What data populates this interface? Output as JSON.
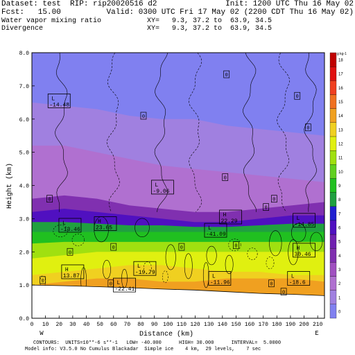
{
  "header": {
    "line1_left": "Dataset: test  RIP: rip20020516 d2",
    "line1_right": "Init: 1200 UTC Thu 16 May 02",
    "line2_left": "Fcst:   15.00",
    "line2_right": "Valid: 0300 UTC Fri 17 May 02 (2200 CDT Thu 16 May 02)",
    "line3_left": "Water vapor mixing ratio",
    "line3_right": "XY=   9.3, 37.2 to  63.9, 34.5",
    "line4_left": "Divergence",
    "line4_right": "XY=   9.3, 37.2 to  63.9, 34.5"
  },
  "footer": {
    "line1": "CONTOURS:  UNITS=10**-6 s**-1   LOW= -40.000      HIGH= 30.000      INTERVAL=  5.0000",
    "line2": "Model info: V3.5.0 No Cumulus Blackadar  Simple ice    4 km,  29 levels,    7 sec"
  },
  "chart_data": {
    "type": "heatmap",
    "xlabel": "Distance (km)",
    "ylabel": "Height (km)",
    "xlim": [
      0,
      215
    ],
    "ylim": [
      0,
      8.0
    ],
    "x_ticks": [
      0,
      10,
      20,
      30,
      40,
      50,
      60,
      70,
      80,
      90,
      100,
      110,
      120,
      130,
      140,
      150,
      160,
      170,
      180,
      190,
      200,
      210
    ],
    "y_ticks": [
      "0.0",
      "1.0",
      "2.0",
      "3.0",
      "4.0",
      "5.0",
      "6.0",
      "7.0",
      "8.0"
    ],
    "x_end_labels": {
      "left": "W",
      "right": "E"
    },
    "colorbar": {
      "unit": "g kg-1",
      "labels": [
        "0",
        "1",
        "2",
        "3",
        "4",
        "5",
        "6",
        "7",
        "8",
        "9",
        "10",
        "11",
        "12",
        "13",
        "14",
        "15",
        "16",
        "17",
        "18"
      ],
      "colors": [
        "#8080f0",
        "#a080e0",
        "#b070d0",
        "#a050c0",
        "#8030b0",
        "#7020b0",
        "#5010c0",
        "#2020d0",
        "#20a040",
        "#20c020",
        "#60d020",
        "#a0e010",
        "#e0f010",
        "#f0d020",
        "#f0a020",
        "#f07020",
        "#f04020",
        "#e01010",
        "#c00000"
      ]
    },
    "moisture_layers": [
      {
        "level_g_per_kg": 1,
        "top_km": [
          6.5,
          6.4,
          6.3,
          6.1,
          6.0,
          6.0,
          5.8,
          5.7,
          5.6,
          5.5
        ]
      },
      {
        "level_g_per_kg": 2,
        "top_km": [
          5.2,
          5.2,
          5.0,
          4.8,
          4.6,
          4.5,
          4.4,
          4.3,
          4.2,
          4.1
        ]
      },
      {
        "level_g_per_kg": 4,
        "top_km": [
          3.6,
          3.7,
          3.6,
          3.4,
          3.3,
          3.2,
          3.2,
          3.3,
          3.4,
          3.5
        ]
      },
      {
        "level_g_per_kg": 6,
        "top_km": [
          3.2,
          3.3,
          3.2,
          3.1,
          3.0,
          2.9,
          2.9,
          3.0,
          3.1,
          3.1
        ]
      },
      {
        "level_g_per_kg": 8,
        "top_km": [
          2.9,
          2.9,
          2.85,
          2.8,
          2.8,
          2.75,
          2.75,
          2.8,
          2.85,
          2.85
        ]
      },
      {
        "level_g_per_kg": 9,
        "top_km": [
          2.6,
          2.6,
          2.6,
          2.6,
          2.6,
          2.6,
          2.6,
          2.6,
          2.6,
          2.6
        ]
      },
      {
        "level_g_per_kg": 11,
        "top_km": [
          2.25,
          2.3,
          2.3,
          2.3,
          2.3,
          2.3,
          2.3,
          2.3,
          2.3,
          2.3
        ]
      },
      {
        "level_g_per_kg": 12,
        "top_km": [
          1.8,
          1.9,
          2.0,
          2.0,
          2.0,
          2.0,
          2.0,
          2.0,
          2.0,
          2.0
        ]
      },
      {
        "level_g_per_kg": 13,
        "top_km": [
          1.3,
          1.4,
          1.5,
          1.6,
          1.6,
          1.5,
          1.4,
          1.4,
          1.3,
          1.3
        ]
      },
      {
        "level_g_per_kg": 14,
        "top_km": [
          1.0,
          1.1,
          1.2,
          1.2,
          1.1,
          1.1,
          1.2,
          1.2,
          1.2,
          1.1
        ]
      }
    ],
    "terrain_top_km": [
      1.0,
      0.98,
      0.95,
      0.92,
      0.88,
      0.85,
      0.8,
      0.75,
      0.72,
      0.68
    ],
    "annotations": [
      {
        "kind": "L",
        "value": "-14.48",
        "x": 20,
        "y": 6.55
      },
      {
        "kind": "L",
        "value": "-9.06",
        "x": 96,
        "y": 3.95
      },
      {
        "kind": "L",
        "value": "-13.46",
        "x": 28,
        "y": 2.8
      },
      {
        "kind": "H",
        "value": "23.65",
        "x": 54,
        "y": 2.85
      },
      {
        "kind": "L",
        "value": "-41.09",
        "x": 135,
        "y": 2.65
      },
      {
        "kind": "H",
        "value": "22.29",
        "x": 146,
        "y": 3.05
      },
      {
        "kind": "L",
        "value": "-14.85",
        "x": 200,
        "y": 2.95
      },
      {
        "kind": "H",
        "value": "30.46",
        "x": 200,
        "y": 2.05
      },
      {
        "kind": "H",
        "value": "13.87",
        "x": 30,
        "y": 1.4
      },
      {
        "kind": "L",
        "value": "-19.79",
        "x": 83,
        "y": 1.5
      },
      {
        "kind": "L",
        "value": "-22.41",
        "x": 68,
        "y": 1.0
      },
      {
        "kind": "L",
        "value": "-11.96",
        "x": 138,
        "y": 1.2
      },
      {
        "kind": "L",
        "value": "-18.6",
        "x": 196,
        "y": 1.2
      }
    ],
    "zero_labels": [
      {
        "x": 143,
        "y": 7.35
      },
      {
        "x": 195,
        "y": 6.7
      },
      {
        "x": 82,
        "y": 6.1
      },
      {
        "x": 203,
        "y": 5.75
      },
      {
        "x": 142,
        "y": 4.25
      },
      {
        "x": 13,
        "y": 3.6
      },
      {
        "x": 178,
        "y": 3.6
      },
      {
        "x": 172,
        "y": 3.35
      },
      {
        "x": 60,
        "y": 2.15
      },
      {
        "x": 150,
        "y": 2.2
      },
      {
        "x": 110,
        "y": 2.15
      },
      {
        "x": 28,
        "y": 2.0
      },
      {
        "x": 8,
        "y": 1.15
      },
      {
        "x": 58,
        "y": 1.05
      },
      {
        "x": 176,
        "y": 1.05
      },
      {
        "x": 185,
        "y": 0.8
      }
    ]
  }
}
